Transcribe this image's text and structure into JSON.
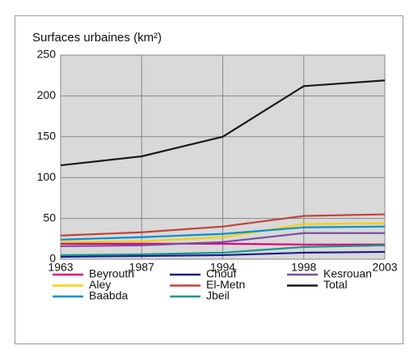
{
  "chart_data": {
    "type": "line",
    "title": "Surfaces urbaines (km²)",
    "categories": [
      "1963",
      "1987",
      "1994",
      "1998",
      "2003"
    ],
    "ylim": [
      0,
      250
    ],
    "yticks": [
      0,
      50,
      100,
      150,
      200,
      250
    ],
    "grid": true,
    "series": [
      {
        "name": "Beyrouth",
        "color": "#e6007e",
        "values": [
          19,
          19,
          19,
          18,
          18
        ]
      },
      {
        "name": "Chouf",
        "color": "#1d1d8c",
        "values": [
          3,
          4,
          5,
          8,
          9
        ]
      },
      {
        "name": "Kesrouan",
        "color": "#7b4fa0",
        "values": [
          16,
          17,
          21,
          32,
          32
        ]
      },
      {
        "name": "Aley",
        "color": "#f5d000",
        "values": [
          21,
          22,
          27,
          43,
          44
        ]
      },
      {
        "name": "El-Metn",
        "color": "#c0443a",
        "values": [
          29,
          33,
          40,
          53,
          55
        ]
      },
      {
        "name": "Total",
        "color": "#1a1a1a",
        "values": [
          115,
          126,
          150,
          212,
          219
        ]
      },
      {
        "name": "Baabda",
        "color": "#0090d0",
        "values": [
          24,
          27,
          31,
          39,
          40
        ]
      },
      {
        "name": "Jbeil",
        "color": "#14988c",
        "values": [
          5,
          6,
          8,
          15,
          17
        ]
      }
    ]
  }
}
